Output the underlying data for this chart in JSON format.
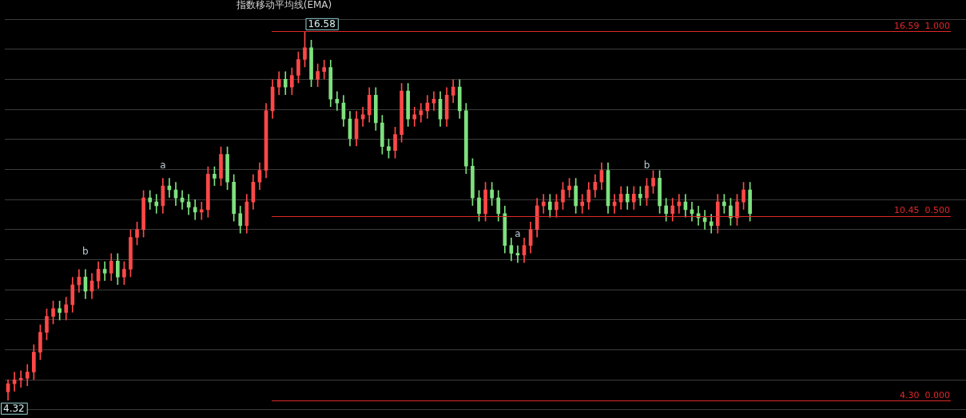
{
  "chart_data": {
    "type": "candlestick",
    "title": "指数移动平均线(EMA)",
    "categories": [
      null,
      null,
      null,
      null,
      null,
      null,
      null,
      null,
      null,
      null,
      null,
      null,
      null,
      null,
      null,
      null,
      null,
      null,
      null,
      null,
      null,
      null,
      null,
      null,
      null,
      null,
      null,
      null,
      null,
      null,
      null,
      null,
      null,
      null,
      null,
      null,
      null,
      null,
      null,
      null,
      null,
      null,
      null,
      null,
      null,
      null,
      null,
      null,
      null,
      null,
      null,
      null,
      null,
      null,
      null,
      null,
      null,
      null,
      null,
      null,
      null,
      null,
      null,
      null,
      null,
      null,
      null,
      null,
      null,
      null,
      null,
      null,
      null,
      null,
      null,
      null,
      null,
      null,
      null,
      null,
      null,
      null,
      null,
      null,
      null,
      null,
      null,
      null,
      null,
      null,
      null,
      null,
      null,
      null,
      null,
      null,
      null,
      null,
      null,
      null,
      null,
      null,
      null,
      null,
      null,
      null,
      null,
      null,
      null,
      null,
      null,
      null,
      null,
      null,
      null,
      null
    ],
    "ohlc": [
      [
        4.6,
        5.0,
        4.32,
        4.87
      ],
      [
        4.87,
        5.25,
        4.62,
        5.0
      ],
      [
        5.0,
        5.3,
        4.75,
        5.05
      ],
      [
        5.05,
        5.51,
        4.8,
        5.26
      ],
      [
        5.26,
        6.17,
        5.01,
        5.92
      ],
      [
        5.92,
        6.83,
        5.67,
        6.58
      ],
      [
        6.58,
        7.36,
        6.33,
        7.11
      ],
      [
        7.11,
        7.62,
        6.86,
        7.37
      ],
      [
        7.37,
        7.62,
        6.99,
        7.24
      ],
      [
        7.24,
        7.75,
        6.99,
        7.5
      ],
      [
        7.5,
        8.41,
        7.25,
        8.16
      ],
      [
        8.16,
        8.67,
        7.91,
        8.42
      ],
      [
        8.42,
        8.67,
        7.7,
        7.95
      ],
      [
        7.95,
        8.54,
        7.7,
        8.29
      ],
      [
        8.29,
        8.93,
        8.04,
        8.68
      ],
      [
        8.68,
        8.93,
        8.3,
        8.55
      ],
      [
        8.55,
        9.2,
        8.3,
        8.95
      ],
      [
        8.95,
        9.2,
        8.17,
        8.42
      ],
      [
        8.42,
        8.93,
        8.17,
        8.68
      ],
      [
        8.68,
        9.99,
        8.43,
        9.74
      ],
      [
        9.74,
        10.25,
        9.49,
        10.0
      ],
      [
        10.0,
        11.3,
        9.75,
        11.05
      ],
      [
        11.05,
        11.3,
        10.67,
        10.92
      ],
      [
        10.92,
        11.17,
        10.54,
        10.79
      ],
      [
        10.79,
        11.7,
        10.54,
        11.45
      ],
      [
        11.45,
        11.7,
        11.07,
        11.32
      ],
      [
        11.32,
        11.57,
        10.8,
        11.05
      ],
      [
        11.05,
        11.3,
        10.67,
        10.92
      ],
      [
        10.92,
        11.17,
        10.49,
        10.74
      ],
      [
        10.74,
        10.99,
        10.33,
        10.58
      ],
      [
        10.58,
        10.91,
        10.33,
        10.66
      ],
      [
        10.66,
        12.09,
        10.41,
        11.84
      ],
      [
        11.84,
        12.09,
        11.46,
        11.71
      ],
      [
        11.71,
        12.75,
        11.46,
        12.5
      ],
      [
        12.5,
        12.75,
        11.33,
        11.58
      ],
      [
        11.58,
        11.83,
        10.28,
        10.53
      ],
      [
        10.53,
        10.78,
        9.88,
        10.13
      ],
      [
        10.13,
        11.17,
        9.88,
        10.92
      ],
      [
        10.92,
        11.83,
        10.67,
        11.58
      ],
      [
        11.58,
        12.22,
        11.33,
        11.97
      ],
      [
        11.97,
        14.2,
        11.72,
        13.95
      ],
      [
        13.95,
        14.99,
        13.7,
        14.74
      ],
      [
        14.74,
        15.25,
        14.49,
        15.0
      ],
      [
        15.0,
        15.25,
        14.49,
        14.74
      ],
      [
        14.74,
        15.38,
        14.49,
        15.13
      ],
      [
        15.13,
        15.91,
        14.88,
        15.66
      ],
      [
        15.66,
        16.58,
        15.41,
        16.05
      ],
      [
        16.05,
        16.3,
        14.75,
        15.0
      ],
      [
        15.0,
        15.51,
        14.75,
        15.26
      ],
      [
        15.26,
        15.64,
        15.01,
        15.39
      ],
      [
        15.39,
        15.64,
        14.09,
        14.34
      ],
      [
        14.34,
        14.59,
        13.96,
        14.21
      ],
      [
        14.21,
        14.46,
        13.43,
        13.68
      ],
      [
        13.68,
        13.93,
        12.78,
        13.03
      ],
      [
        13.03,
        13.93,
        12.78,
        13.68
      ],
      [
        13.68,
        14.07,
        13.43,
        13.82
      ],
      [
        13.82,
        14.72,
        13.57,
        14.47
      ],
      [
        14.47,
        14.72,
        13.3,
        13.55
      ],
      [
        13.55,
        13.8,
        12.51,
        12.76
      ],
      [
        12.76,
        13.01,
        12.38,
        12.63
      ],
      [
        12.63,
        13.41,
        12.38,
        13.16
      ],
      [
        13.16,
        14.86,
        12.91,
        14.61
      ],
      [
        14.61,
        14.86,
        13.43,
        13.68
      ],
      [
        13.68,
        14.07,
        13.43,
        13.82
      ],
      [
        13.82,
        14.2,
        13.57,
        13.95
      ],
      [
        13.95,
        14.46,
        13.7,
        14.21
      ],
      [
        14.21,
        14.59,
        13.96,
        14.34
      ],
      [
        14.34,
        14.59,
        13.43,
        13.68
      ],
      [
        13.68,
        14.72,
        13.43,
        14.47
      ],
      [
        14.47,
        14.99,
        14.22,
        14.74
      ],
      [
        14.74,
        14.99,
        13.7,
        13.95
      ],
      [
        13.95,
        14.2,
        11.86,
        12.11
      ],
      [
        12.11,
        12.36,
        10.8,
        11.05
      ],
      [
        11.05,
        11.3,
        10.28,
        10.53
      ],
      [
        10.53,
        11.57,
        10.28,
        11.32
      ],
      [
        11.32,
        11.57,
        10.8,
        11.05
      ],
      [
        11.05,
        11.3,
        10.28,
        10.53
      ],
      [
        10.53,
        10.78,
        9.22,
        9.47
      ],
      [
        9.47,
        9.72,
        8.96,
        9.21
      ],
      [
        9.21,
        9.46,
        8.9,
        9.15
      ],
      [
        9.15,
        9.72,
        8.9,
        9.47
      ],
      [
        9.47,
        10.25,
        9.22,
        10.0
      ],
      [
        10.0,
        11.04,
        9.75,
        10.79
      ],
      [
        10.79,
        11.17,
        10.54,
        10.92
      ],
      [
        10.92,
        11.17,
        10.41,
        10.66
      ],
      [
        10.66,
        11.17,
        10.41,
        10.92
      ],
      [
        10.92,
        11.57,
        10.67,
        11.32
      ],
      [
        11.32,
        11.7,
        11.07,
        11.45
      ],
      [
        11.45,
        11.7,
        10.54,
        10.79
      ],
      [
        10.79,
        11.17,
        10.54,
        10.92
      ],
      [
        10.92,
        11.57,
        10.67,
        11.32
      ],
      [
        11.32,
        11.83,
        11.07,
        11.58
      ],
      [
        11.58,
        12.22,
        11.33,
        11.97
      ],
      [
        11.97,
        12.22,
        10.54,
        10.79
      ],
      [
        10.79,
        11.17,
        10.54,
        10.92
      ],
      [
        10.92,
        11.43,
        10.67,
        11.18
      ],
      [
        11.18,
        11.43,
        10.67,
        10.92
      ],
      [
        10.92,
        11.43,
        10.67,
        11.18
      ],
      [
        11.18,
        11.43,
        10.8,
        11.05
      ],
      [
        11.05,
        11.7,
        10.8,
        11.45
      ],
      [
        11.45,
        11.96,
        11.2,
        11.71
      ],
      [
        11.71,
        11.96,
        10.54,
        10.79
      ],
      [
        10.79,
        11.04,
        10.28,
        10.53
      ],
      [
        10.53,
        11.04,
        10.28,
        10.79
      ],
      [
        10.79,
        11.17,
        10.54,
        10.92
      ],
      [
        10.92,
        11.17,
        10.41,
        10.66
      ],
      [
        10.66,
        10.91,
        10.28,
        10.53
      ],
      [
        10.53,
        10.78,
        10.14,
        10.39
      ],
      [
        10.39,
        10.64,
        10.01,
        10.26
      ],
      [
        10.26,
        10.51,
        9.88,
        10.13
      ],
      [
        10.13,
        11.17,
        9.88,
        10.92
      ],
      [
        10.92,
        11.17,
        10.54,
        10.79
      ],
      [
        10.79,
        11.04,
        10.14,
        10.39
      ],
      [
        10.39,
        11.17,
        10.14,
        10.92
      ],
      [
        10.92,
        11.57,
        10.67,
        11.32
      ],
      [
        11.32,
        11.57,
        10.28,
        10.53
      ]
    ],
    "yticks": [
      {
        "value": 4,
        "label": null
      },
      {
        "value": 5,
        "label": null
      },
      {
        "value": 6,
        "label": null
      },
      {
        "value": 7,
        "label": null
      },
      {
        "value": 8,
        "label": null
      },
      {
        "value": 9,
        "label": null
      },
      {
        "value": 10,
        "label": null
      },
      {
        "value": 11,
        "label": null
      },
      {
        "value": 12,
        "label": null
      },
      {
        "value": 13,
        "label": null
      },
      {
        "value": 14,
        "label": null
      },
      {
        "value": 15,
        "label": null
      },
      {
        "value": 16,
        "label": null
      },
      {
        "value": 17,
        "label": null
      }
    ],
    "grid": "y",
    "legend": false,
    "ref_lines": [
      {
        "axis": "y",
        "value": 16.59,
        "label": "16.59  1.000",
        "color": "#e02828"
      },
      {
        "axis": "y",
        "value": 10.45,
        "label": "10.45  0.500",
        "color": "#e02828"
      },
      {
        "axis": "y",
        "value": 4.3,
        "label": "4.30  0.000",
        "color": "#e02828"
      }
    ],
    "annotations": [
      "b",
      "a",
      "a",
      "b",
      {
        "text": "16.58",
        "y": 16.58
      },
      "4.32"
    ]
  }
}
